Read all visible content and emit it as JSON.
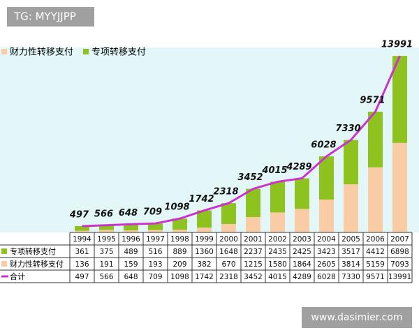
{
  "watermark_top": "TG: MYYJJPP",
  "watermark_bottom": "www.dasimier.com",
  "chart_data": {
    "type": "bar",
    "categories": [
      "1994",
      "1995",
      "1996",
      "1997",
      "1998",
      "1999",
      "2000",
      "2001",
      "2002",
      "2003",
      "2004",
      "2005",
      "2006",
      "2007"
    ],
    "series": [
      {
        "name": "专项转移支付",
        "color": "#8dc21f",
        "values": [
          361,
          375,
          489,
          516,
          889,
          1360,
          1648,
          2237,
          2435,
          2425,
          3423,
          3517,
          4412,
          6898
        ]
      },
      {
        "name": "财力性转移支付",
        "color": "#f9cca5",
        "values": [
          136,
          191,
          159,
          193,
          209,
          382,
          670,
          1215,
          1580,
          1864,
          2605,
          3814,
          5159,
          7093
        ]
      },
      {
        "name": "合计",
        "color": "#cc33cc",
        "type": "line",
        "values": [
          497,
          566,
          648,
          709,
          1098,
          1742,
          2318,
          3452,
          4015,
          4289,
          6028,
          7330,
          9571,
          13991
        ]
      }
    ],
    "ylim": [
      0,
      14000
    ],
    "stacked": true
  }
}
